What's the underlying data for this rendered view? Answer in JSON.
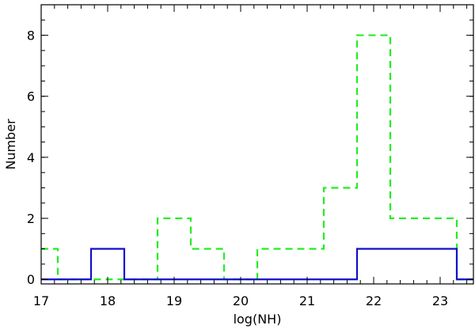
{
  "chart_data": {
    "type": "histogram",
    "xlabel": "log(NH)",
    "ylabel": "Number",
    "xlim": [
      17,
      23.5
    ],
    "ylim": [
      -0.15,
      9
    ],
    "bin_edges": [
      17.0,
      17.25,
      17.75,
      18.25,
      18.75,
      19.25,
      19.75,
      20.25,
      20.75,
      21.25,
      21.75,
      22.25,
      22.75,
      23.25,
      23.5
    ],
    "x_ticks": [
      17,
      18,
      19,
      20,
      21,
      22,
      23
    ],
    "x_tick_labels": [
      "17",
      "18",
      "19",
      "20",
      "21",
      "22",
      "23"
    ],
    "y_ticks": [
      0,
      2,
      4,
      6,
      8
    ],
    "y_tick_labels": [
      "0",
      "2",
      "4",
      "6",
      "8"
    ],
    "series": [
      {
        "style": "dashed",
        "color": "#22ee22",
        "values": [
          1,
          0,
          0,
          0,
          2,
          1,
          0,
          1,
          1,
          3,
          8,
          2,
          2,
          0
        ]
      },
      {
        "style": "solid",
        "color": "#1010cc",
        "values": [
          0,
          0,
          1,
          0,
          0,
          0,
          0,
          0,
          0,
          0,
          1,
          1,
          1,
          0
        ]
      }
    ],
    "grid": false,
    "legend": "none"
  }
}
